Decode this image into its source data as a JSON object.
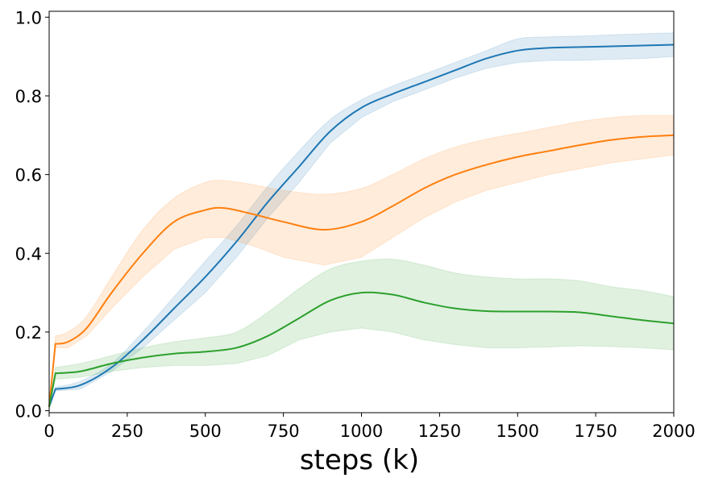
{
  "chart_data": {
    "type": "line",
    "title": "",
    "xlabel": "steps (k)",
    "ylabel": "",
    "xlim": [
      0,
      2000
    ],
    "ylim": [
      0,
      1.0
    ],
    "xticks": [
      0,
      250,
      500,
      750,
      1000,
      1250,
      1500,
      1750,
      2000
    ],
    "xtick_labels": [
      "0",
      "250",
      "500",
      "750",
      "1000",
      "1250",
      "1500",
      "1750",
      "2000"
    ],
    "yticks": [
      0.0,
      0.2,
      0.4,
      0.6,
      0.8,
      1.0
    ],
    "ytick_labels": [
      "0.0",
      "0.2",
      "0.4",
      "0.6",
      "0.8",
      "1.0"
    ],
    "grid": false,
    "series": [
      {
        "name": "blue",
        "color": "#1f77b4",
        "x": [
          0,
          20,
          100,
          200,
          300,
          400,
          500,
          600,
          700,
          800,
          900,
          1000,
          1100,
          1200,
          1300,
          1400,
          1500,
          1600,
          1700,
          1800,
          1900,
          2000
        ],
        "y": [
          0.01,
          0.055,
          0.065,
          0.11,
          0.18,
          0.26,
          0.34,
          0.43,
          0.53,
          0.62,
          0.71,
          0.77,
          0.805,
          0.835,
          0.865,
          0.895,
          0.915,
          0.922,
          0.924,
          0.926,
          0.928,
          0.93
        ],
        "lower": [
          0.01,
          0.05,
          0.055,
          0.1,
          0.16,
          0.23,
          0.3,
          0.39,
          0.49,
          0.58,
          0.68,
          0.745,
          0.785,
          0.815,
          0.845,
          0.87,
          0.885,
          0.89,
          0.89,
          0.893,
          0.895,
          0.9
        ],
        "upper": [
          0.01,
          0.06,
          0.075,
          0.12,
          0.2,
          0.29,
          0.38,
          0.47,
          0.57,
          0.66,
          0.74,
          0.79,
          0.825,
          0.855,
          0.885,
          0.915,
          0.945,
          0.95,
          0.952,
          0.955,
          0.958,
          0.96
        ]
      },
      {
        "name": "orange",
        "color": "#ff7f0e",
        "x": [
          0,
          20,
          60,
          120,
          200,
          300,
          400,
          500,
          560,
          650,
          750,
          880,
          1000,
          1100,
          1200,
          1300,
          1400,
          1500,
          1600,
          1700,
          1800,
          1900,
          2000
        ],
        "y": [
          0.01,
          0.17,
          0.175,
          0.21,
          0.3,
          0.4,
          0.48,
          0.51,
          0.515,
          0.5,
          0.48,
          0.46,
          0.48,
          0.52,
          0.565,
          0.6,
          0.625,
          0.645,
          0.66,
          0.675,
          0.688,
          0.696,
          0.7
        ],
        "lower": [
          0.01,
          0.16,
          0.16,
          0.19,
          0.26,
          0.34,
          0.41,
          0.44,
          0.44,
          0.42,
          0.39,
          0.37,
          0.39,
          0.44,
          0.49,
          0.53,
          0.56,
          0.58,
          0.6,
          0.615,
          0.63,
          0.64,
          0.65
        ],
        "upper": [
          0.01,
          0.19,
          0.2,
          0.24,
          0.34,
          0.46,
          0.54,
          0.58,
          0.585,
          0.575,
          0.56,
          0.55,
          0.565,
          0.6,
          0.64,
          0.67,
          0.69,
          0.705,
          0.72,
          0.735,
          0.745,
          0.75,
          0.75
        ]
      },
      {
        "name": "green",
        "color": "#2ca02c",
        "x": [
          0,
          20,
          100,
          200,
          300,
          400,
          500,
          600,
          700,
          800,
          900,
          1000,
          1100,
          1200,
          1300,
          1400,
          1500,
          1600,
          1700,
          1800,
          1900,
          2000
        ],
        "y": [
          0.01,
          0.095,
          0.1,
          0.12,
          0.135,
          0.145,
          0.15,
          0.16,
          0.19,
          0.235,
          0.28,
          0.3,
          0.295,
          0.275,
          0.26,
          0.253,
          0.252,
          0.252,
          0.25,
          0.24,
          0.23,
          0.222
        ],
        "lower": [
          0.01,
          0.08,
          0.085,
          0.1,
          0.11,
          0.115,
          0.115,
          0.12,
          0.14,
          0.18,
          0.2,
          0.21,
          0.2,
          0.18,
          0.168,
          0.16,
          0.16,
          0.162,
          0.165,
          0.163,
          0.16,
          0.155
        ],
        "upper": [
          0.01,
          0.11,
          0.12,
          0.14,
          0.16,
          0.175,
          0.185,
          0.2,
          0.25,
          0.31,
          0.36,
          0.38,
          0.385,
          0.37,
          0.35,
          0.34,
          0.335,
          0.335,
          0.33,
          0.315,
          0.305,
          0.29
        ]
      }
    ]
  }
}
